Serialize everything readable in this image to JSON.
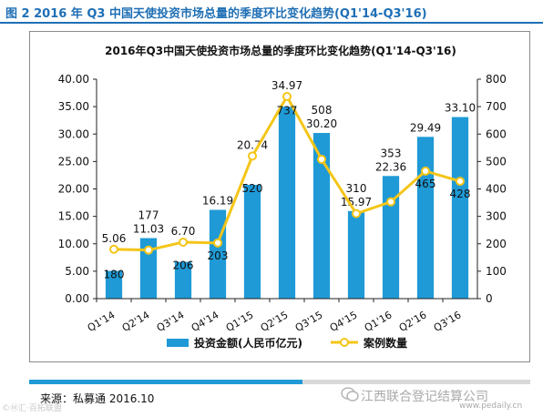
{
  "figure": {
    "caption": "图 2 2016 年 Q3 中国天使投资市场总量的季度环比变化趋势(Q1'14-Q3'16)"
  },
  "source": "来源：私募通 2016.10",
  "watermark": {
    "left": "©Ⓜ汇·百拓联盟",
    "right": "江西联合登记结算公司",
    "url": "www.pedaily.cn"
  },
  "colors": {
    "bar": "#1f9ad6",
    "line": "#f5c518",
    "accent": "#1f6fb5"
  },
  "chart_data": {
    "type": "bar",
    "title": "2016年Q3中国天使投资市场总量的季度环比变化趋势(Q1'14-Q3'16)",
    "categories": [
      "Q1'14",
      "Q2'14",
      "Q3'14",
      "Q4'14",
      "Q1'15",
      "Q2'15",
      "Q3'15",
      "Q4'15",
      "Q1'16",
      "Q2'16",
      "Q3'16"
    ],
    "series": [
      {
        "name": "投资金额(人民币亿元)",
        "type": "bar",
        "axis": "left",
        "values": [
          5.06,
          11.03,
          6.7,
          16.19,
          20.74,
          34.97,
          30.2,
          15.97,
          22.36,
          29.49,
          33.1
        ],
        "labels": [
          "5.06",
          "11.03",
          "6.70",
          "16.19",
          "20.74",
          "34.97",
          "30.20",
          "15.97",
          "22.36",
          "29.49",
          "33.10"
        ]
      },
      {
        "name": "案例数量",
        "type": "line",
        "axis": "right",
        "values": [
          180,
          177,
          206,
          203,
          520,
          737,
          508,
          310,
          353,
          465,
          428
        ],
        "labels": [
          "180",
          "177",
          "206",
          "203",
          "520",
          "737",
          "508",
          "310",
          "353",
          "465",
          "428"
        ]
      }
    ],
    "y_left": {
      "ylim": [
        0,
        40
      ],
      "ticks": [
        "0.00",
        "5.00",
        "10.00",
        "15.00",
        "20.00",
        "25.00",
        "30.00",
        "35.00",
        "40.00"
      ]
    },
    "y_right": {
      "ylim": [
        0,
        800
      ],
      "ticks": [
        "0",
        "100",
        "200",
        "300",
        "400",
        "500",
        "600",
        "700",
        "800"
      ]
    },
    "grid": false,
    "legend": "bottom"
  }
}
